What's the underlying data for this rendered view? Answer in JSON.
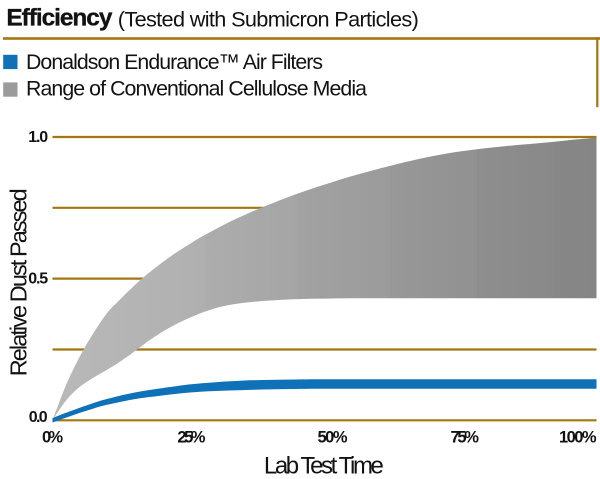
{
  "header": {
    "title": "Efficiency",
    "subtitle": "(Tested with Submicron Particles)"
  },
  "legend": {
    "items": [
      {
        "label": "Donaldson Endurance™ Air Filters",
        "color": "#0f72b9"
      },
      {
        "label": "Range of Conventional Cellulose Media",
        "color": "#9b9b9b"
      }
    ]
  },
  "rule_color": "#a3760f",
  "chart_data": {
    "type": "area",
    "title": "Efficiency (Tested with Submicron Particles)",
    "xlabel": "Lab Test Time",
    "ylabel": "Relative Dust Passed",
    "xlim": [
      0,
      100
    ],
    "ylim": [
      0,
      1.0
    ],
    "grid": true,
    "grid_color": "#a3760f",
    "x_ticks": [
      0,
      25,
      50,
      75,
      100
    ],
    "x_tick_labels": [
      "0%",
      "25%",
      "50%",
      "75%",
      "100%"
    ],
    "y_gridlines": [
      0,
      0.25,
      0.5,
      0.75,
      1.0
    ],
    "y_ticks": [
      {
        "value": 0.0,
        "label": "0.0"
      },
      {
        "value": 0.5,
        "label": "0.5"
      },
      {
        "value": 1.0,
        "label": "1.0"
      }
    ],
    "legend_position": "top-left",
    "series": [
      {
        "name": "Donaldson Endurance™ Air Filters",
        "type": "line",
        "color": "#0f72b9",
        "x": [
          0,
          2.5,
          5,
          7.5,
          10,
          15,
          20,
          25,
          30,
          35,
          40,
          45,
          50,
          60,
          70,
          80,
          90,
          100
        ],
        "y": [
          0,
          0.018,
          0.035,
          0.051,
          0.065,
          0.086,
          0.1,
          0.112,
          0.119,
          0.1235,
          0.126,
          0.1272,
          0.128,
          0.128,
          0.128,
          0.128,
          0.128,
          0.128
        ]
      },
      {
        "name": "Range of Conventional Cellulose Media",
        "type": "band",
        "color_start": "#b9b9b9",
        "color_end": "#858585",
        "x": [
          0,
          2.5,
          5,
          7.5,
          10,
          12.5,
          15,
          17.5,
          20,
          22.5,
          25,
          27.5,
          30,
          32.5,
          35,
          37.5,
          40,
          45,
          50,
          55,
          60,
          65,
          70,
          75,
          80,
          85,
          90,
          95,
          100
        ],
        "y_upper": [
          0,
          0.125,
          0.225,
          0.307,
          0.378,
          0.428,
          0.475,
          0.517,
          0.555,
          0.589,
          0.62,
          0.649,
          0.675,
          0.7,
          0.722,
          0.743,
          0.763,
          0.8,
          0.832,
          0.862,
          0.888,
          0.912,
          0.933,
          0.949,
          0.961,
          0.971,
          0.979,
          0.989,
          0.997
        ],
        "y_lower": [
          0,
          0.07,
          0.118,
          0.15,
          0.178,
          0.208,
          0.242,
          0.278,
          0.31,
          0.337,
          0.36,
          0.38,
          0.396,
          0.407,
          0.4145,
          0.4195,
          0.423,
          0.4278,
          0.4297,
          0.4305,
          0.431,
          0.431,
          0.431,
          0.431,
          0.431,
          0.431,
          0.431,
          0.431,
          0.431
        ]
      }
    ]
  }
}
